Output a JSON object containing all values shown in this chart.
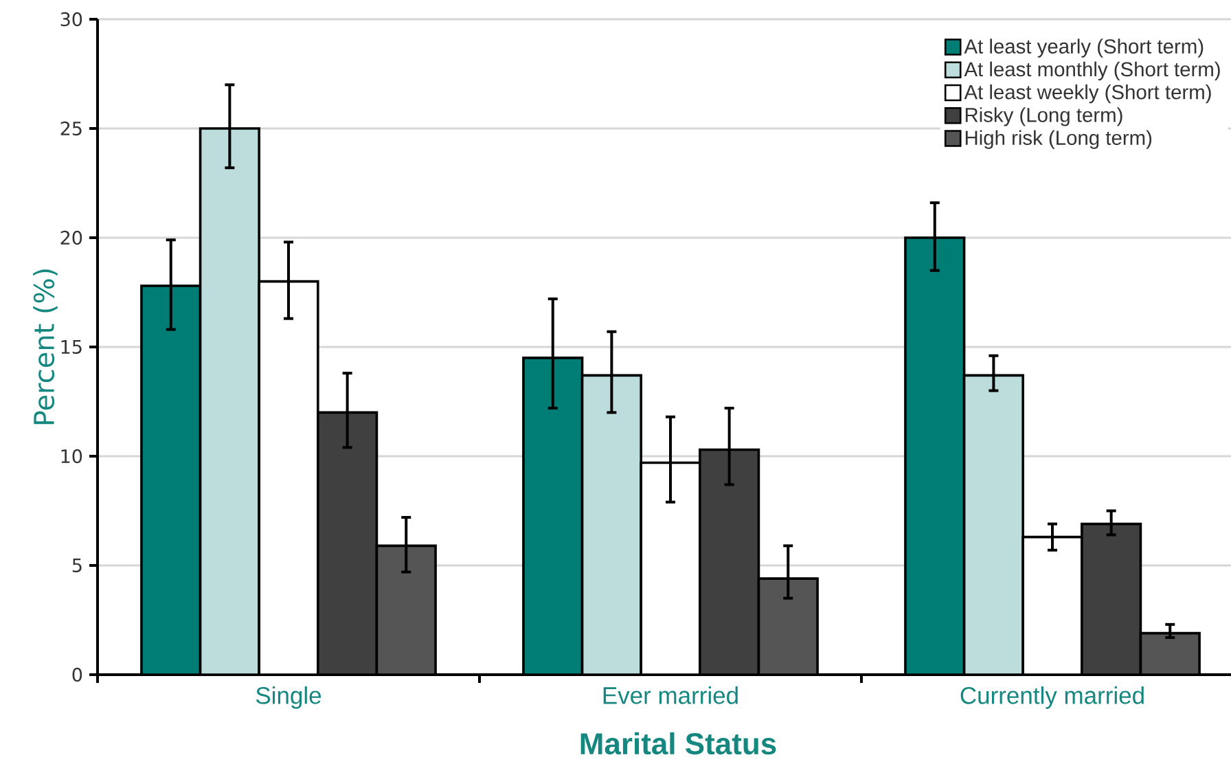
{
  "chart_data": {
    "type": "bar",
    "xlabel": "Marital Status",
    "ylabel": "Percent (%)",
    "categories": [
      "Single",
      "Ever married",
      "Currently married"
    ],
    "ylim": [
      0,
      30
    ],
    "yticks": [
      0,
      5,
      10,
      15,
      20,
      25,
      30
    ],
    "grid": "y",
    "legend": "top right",
    "series": [
      {
        "name": "At least yearly (Short term)",
        "color": "#007d75",
        "values": [
          17.8,
          14.5,
          20.0
        ],
        "errors": [
          [
            15.8,
            19.9
          ],
          [
            12.2,
            17.2
          ],
          [
            18.5,
            21.6
          ]
        ]
      },
      {
        "name": "At least monthly (Short term)",
        "color": "#bddcdc",
        "values": [
          25.0,
          13.7,
          13.7
        ],
        "errors": [
          [
            23.2,
            27.0
          ],
          [
            12.0,
            15.7
          ],
          [
            13.0,
            14.6
          ]
        ]
      },
      {
        "name": "At least weekly (Short term)",
        "color": "#ffffff",
        "values": [
          18.0,
          9.7,
          6.3
        ],
        "errors": [
          [
            16.3,
            19.8
          ],
          [
            7.9,
            11.8
          ],
          [
            5.7,
            6.9
          ]
        ]
      },
      {
        "name": "Risky (Long term)",
        "color": "#404040",
        "values": [
          12.0,
          10.3,
          6.9
        ],
        "errors": [
          [
            10.4,
            13.8
          ],
          [
            8.7,
            12.2
          ],
          [
            6.4,
            7.5
          ]
        ]
      },
      {
        "name": "High risk (Long term)",
        "color": "#555555",
        "values": [
          5.9,
          4.4,
          1.9
        ],
        "errors": [
          [
            4.7,
            7.2
          ],
          [
            3.5,
            5.9
          ],
          [
            1.7,
            2.3
          ]
        ]
      }
    ]
  }
}
